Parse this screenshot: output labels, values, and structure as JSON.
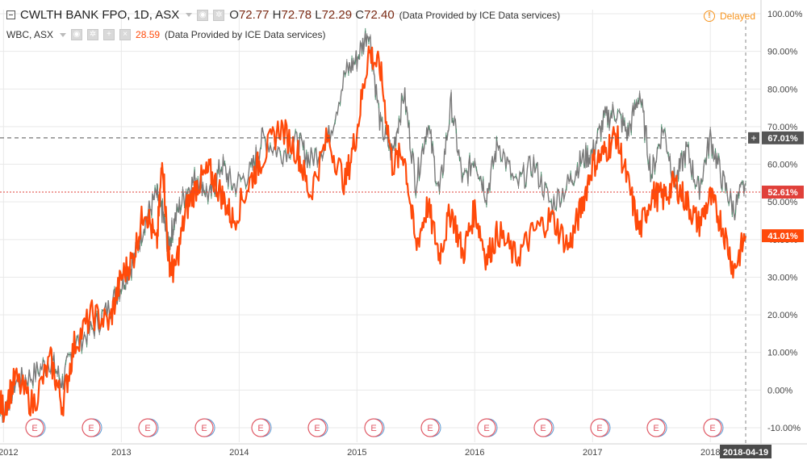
{
  "header": {
    "symbol_title": "CWLTH BANK FPO, 1D, ASX",
    "open_key": "O",
    "open_val": "72.77",
    "high_key": "H",
    "high_val": "72.78",
    "low_key": "L",
    "low_val": "72.29",
    "close_key": "C",
    "close_val": "72.40",
    "provided": "(Data Provided by ICE Data services)",
    "delayed": "Delayed",
    "delayed_icon": "exclamation-circle-icon"
  },
  "compare": {
    "symbol": "WBC, ASX",
    "value": "28.59",
    "provided": "(Data Provided by ICE Data services)"
  },
  "colors": {
    "main_series": "#7a7a7a",
    "main_up": "#4b8f6d",
    "compare_series": "#ff4a0a",
    "price_label_main": "#555555",
    "price_label_red": "#e0403a",
    "price_label_orange": "#ff4a0a",
    "delayed": "#f7941d",
    "grid": "#e9e9e9",
    "event_icon": "#e05a66"
  },
  "chart_data": {
    "type": "line",
    "x": [
      "2012",
      "2013",
      "2014",
      "2015",
      "2016",
      "2017",
      "2018",
      "2018-04-19"
    ],
    "y_axis_ticks": [
      "-10.00%",
      "0.00%",
      "10.00%",
      "20.00%",
      "30.00%",
      "40.00%",
      "50.00%",
      "60.00%",
      "70.00%",
      "80.00%",
      "90.00%",
      "100.00%"
    ],
    "ylim": [
      -10,
      100
    ],
    "x_axis_labels": [
      "2012",
      "2013",
      "2014",
      "2015",
      "2016",
      "2017",
      "2018"
    ],
    "crosshair_date": "2018-04-19",
    "series": [
      {
        "name": "CWLTH BANK FPO, 1D, ASX",
        "x": [
          2011.9,
          2012.0,
          2012.1,
          2012.25,
          2012.4,
          2012.5,
          2012.6,
          2012.75,
          2012.9,
          2013.0,
          2013.1,
          2013.2,
          2013.3,
          2013.35,
          2013.4,
          2013.45,
          2013.55,
          2013.65,
          2013.75,
          2013.85,
          2013.95,
          2014.1,
          2014.2,
          2014.35,
          2014.5,
          2014.6,
          2014.75,
          2014.9,
          2015.0,
          2015.1,
          2015.2,
          2015.3,
          2015.4,
          2015.5,
          2015.6,
          2015.7,
          2015.8,
          2015.9,
          2016.0,
          2016.1,
          2016.2,
          2016.35,
          2016.5,
          2016.65,
          2016.8,
          2016.9,
          2017.0,
          2017.1,
          2017.2,
          2017.3,
          2017.4,
          2017.5,
          2017.6,
          2017.7,
          2017.8,
          2017.9,
          2018.0,
          2018.1,
          2018.2,
          2018.3
        ],
        "y": [
          -2,
          -6,
          2,
          4,
          8,
          2,
          12,
          16,
          22,
          28,
          34,
          45,
          52,
          47,
          38,
          45,
          53,
          57,
          51,
          60,
          54,
          58,
          67,
          63,
          66,
          61,
          66,
          84,
          88,
          96,
          70,
          63,
          79,
          55,
          71,
          52,
          76,
          55,
          62,
          52,
          66,
          54,
          60,
          49,
          55,
          61,
          63,
          72,
          74,
          68,
          79,
          57,
          70,
          55,
          64,
          53,
          67,
          56,
          48,
          55
        ]
      },
      {
        "name": "WBC, ASX",
        "x": [
          2011.9,
          2012.0,
          2012.1,
          2012.25,
          2012.4,
          2012.5,
          2012.6,
          2012.75,
          2012.9,
          2013.0,
          2013.1,
          2013.2,
          2013.3,
          2013.35,
          2013.4,
          2013.45,
          2013.55,
          2013.65,
          2013.75,
          2013.85,
          2013.95,
          2014.1,
          2014.2,
          2014.35,
          2014.5,
          2014.6,
          2014.75,
          2014.9,
          2015.0,
          2015.1,
          2015.2,
          2015.3,
          2015.4,
          2015.5,
          2015.6,
          2015.7,
          2015.8,
          2015.9,
          2016.0,
          2016.1,
          2016.2,
          2016.35,
          2016.5,
          2016.65,
          2016.8,
          2016.9,
          2017.0,
          2017.1,
          2017.2,
          2017.3,
          2017.4,
          2017.5,
          2017.6,
          2017.7,
          2017.8,
          2017.9,
          2018.0,
          2018.1,
          2018.2,
          2018.3
        ],
        "y": [
          0,
          -5,
          3,
          -4,
          8,
          -4,
          12,
          20,
          18,
          30,
          35,
          49,
          38,
          62,
          35,
          31,
          48,
          55,
          58,
          52,
          45,
          56,
          62,
          70,
          63,
          52,
          67,
          55,
          69,
          90,
          85,
          60,
          63,
          38,
          49,
          36,
          48,
          36,
          48,
          35,
          42,
          35,
          42,
          46,
          38,
          48,
          60,
          63,
          68,
          55,
          42,
          52,
          51,
          55,
          50,
          44,
          51,
          44,
          32,
          41
        ]
      }
    ],
    "price_labels": [
      "67.01%",
      "52.61%",
      "41.01%"
    ],
    "price_label_values": [
      67.01,
      52.61,
      41.01
    ],
    "event_markers": [
      "E",
      "E",
      "E",
      "E",
      "E",
      "E",
      "E",
      "E",
      "E",
      "E",
      "E",
      "E",
      "E",
      "E"
    ]
  }
}
